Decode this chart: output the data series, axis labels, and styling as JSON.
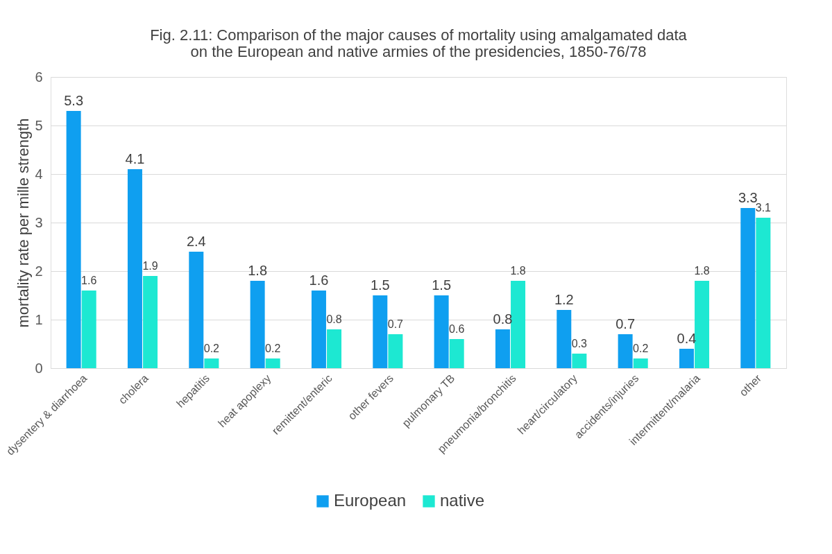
{
  "chart_data": {
    "type": "bar",
    "title": "Fig. 2.11: Comparison of the major causes of mortality using amalgamated data\non the European and native armies of the presidencies, 1850-76/78",
    "ylabel": "mortality rate per mille strength",
    "categories": [
      "dysentery & diarrhoea",
      "cholera",
      "hepatitis",
      "heat apoplexy",
      "remittent/enteric",
      "other fevers",
      "pulmonary TB",
      "pneumonia/bronchitis",
      "heart/circulatory",
      "accidents/injuries",
      "intermittent/malaria",
      "other"
    ],
    "series": [
      {
        "name": "European",
        "color": "#0f9ff0",
        "values": [
          5.3,
          4.1,
          2.4,
          1.8,
          1.6,
          1.5,
          1.5,
          0.8,
          1.2,
          0.7,
          0.4,
          3.3
        ]
      },
      {
        "name": "native",
        "color": "#1de8d2",
        "values": [
          1.6,
          1.9,
          0.2,
          0.2,
          0.8,
          0.7,
          0.6,
          1.8,
          0.3,
          0.2,
          1.8,
          3.1
        ]
      }
    ],
    "ylim": [
      0,
      6
    ],
    "yticks": [
      0,
      1,
      2,
      3,
      4,
      5,
      6
    ],
    "grid": "y",
    "legend": "bottom",
    "data_labels": true
  }
}
